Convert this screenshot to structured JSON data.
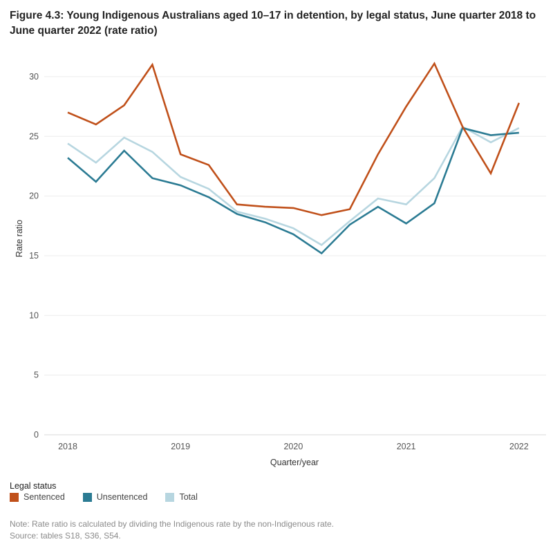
{
  "title": "Figure 4.3: Young Indigenous Australians aged 10–17 in detention, by legal status, June quarter 2018 to June quarter 2022 (rate ratio)",
  "legend": {
    "title": "Legal status",
    "items": [
      {
        "label": "Sentenced",
        "color": "#c0501a"
      },
      {
        "label": "Unsentenced",
        "color": "#2b7b93"
      },
      {
        "label": "Total",
        "color": "#b7d6e0"
      }
    ]
  },
  "notes": {
    "note": "Note: Rate ratio is calculated by dividing the Indigenous rate by the non-Indigenous rate.",
    "source": "Source: tables S18, S36, S54."
  },
  "chart_data": {
    "type": "line",
    "title": "Figure 4.3: Young Indigenous Australians aged 10–17 in detention, by legal status, June quarter 2018 to June quarter 2022 (rate ratio)",
    "xlabel": "Quarter/year",
    "ylabel": "Rate ratio",
    "x_ticks": [
      "2018",
      "2019",
      "2020",
      "2021",
      "2022"
    ],
    "quarters": [
      "Jun 2018",
      "Sep 2018",
      "Dec 2018",
      "Mar 2019",
      "Jun 2019",
      "Sep 2019",
      "Dec 2019",
      "Mar 2020",
      "Jun 2020",
      "Sep 2020",
      "Dec 2020",
      "Mar 2021",
      "Jun 2021",
      "Sep 2021",
      "Dec 2021",
      "Mar 2022",
      "Jun 2022"
    ],
    "ylim": [
      0,
      32
    ],
    "y_ticks": [
      0,
      5,
      10,
      15,
      20,
      25,
      30
    ],
    "grid": true,
    "legend_position": "bottom-left",
    "series": [
      {
        "name": "Sentenced",
        "color": "#c0501a",
        "values": [
          27.0,
          26.0,
          27.6,
          31.0,
          23.5,
          22.6,
          19.3,
          19.1,
          19.0,
          18.4,
          18.9,
          23.5,
          27.5,
          31.1,
          25.8,
          21.9,
          27.8
        ]
      },
      {
        "name": "Unsentenced",
        "color": "#2b7b93",
        "values": [
          23.2,
          21.2,
          23.8,
          21.5,
          20.9,
          19.9,
          18.5,
          17.8,
          16.8,
          15.2,
          17.6,
          19.1,
          17.7,
          19.4,
          25.7,
          25.1,
          25.3
        ]
      },
      {
        "name": "Total",
        "color": "#b7d6e0",
        "values": [
          24.4,
          22.8,
          24.9,
          23.7,
          21.6,
          20.6,
          18.7,
          18.1,
          17.3,
          15.9,
          17.9,
          19.8,
          19.3,
          21.5,
          25.8,
          24.5,
          25.7
        ]
      }
    ]
  }
}
